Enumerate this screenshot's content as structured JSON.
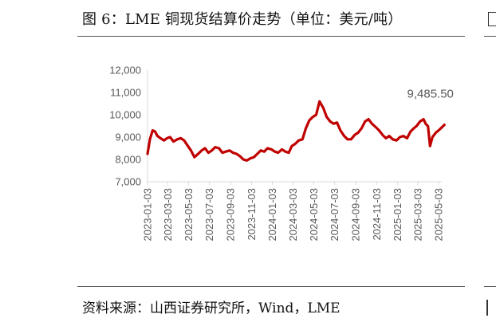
{
  "figure": {
    "title": "图 6：LME 铜现货结算价走势（单位：美元/吨）",
    "source": "资料来源：山西证券研究所，Wind，LME"
  },
  "chart_data": {
    "type": "line",
    "title": "",
    "xlabel": "",
    "ylabel": "",
    "ylim": [
      7000,
      12000
    ],
    "yticks": [
      "7,000",
      "8,000",
      "9,000",
      "10,000",
      "11,000",
      "12,000"
    ],
    "xticks": [
      "2023-01-03",
      "2023-03-03",
      "2023-05-03",
      "2023-07-03",
      "2023-09-03",
      "2023-11-03",
      "2024-01-03",
      "2024-03-03",
      "2024-05-03",
      "2024-07-03",
      "2024-09-03",
      "2024-11-03",
      "2025-01-03",
      "2025-03-03",
      "2025-05-03"
    ],
    "grid": false,
    "legend": "none",
    "line_color": "#c00000",
    "series": [
      {
        "x": [
          "2023-01-03",
          "2023-01-10",
          "2023-01-18",
          "2023-01-25",
          "2023-02-01",
          "2023-02-10",
          "2023-02-20",
          "2023-03-01",
          "2023-03-10",
          "2023-03-20",
          "2023-03-31",
          "2023-04-10",
          "2023-04-20",
          "2023-05-01",
          "2023-05-10",
          "2023-05-20",
          "2023-05-31",
          "2023-06-10",
          "2023-06-20",
          "2023-06-30",
          "2023-07-10",
          "2023-07-20",
          "2023-07-31",
          "2023-08-10",
          "2023-08-20",
          "2023-08-31",
          "2023-09-10",
          "2023-09-20",
          "2023-09-30",
          "2023-10-10",
          "2023-10-20",
          "2023-10-31",
          "2023-11-10",
          "2023-11-20",
          "2023-11-30",
          "2023-12-10",
          "2023-12-20",
          "2023-12-31",
          "2024-01-10",
          "2024-01-20",
          "2024-01-31",
          "2024-02-10",
          "2024-02-20",
          "2024-02-29",
          "2024-03-10",
          "2024-03-20",
          "2024-03-31",
          "2024-04-10",
          "2024-04-20",
          "2024-04-30",
          "2024-05-10",
          "2024-05-20",
          "2024-05-31",
          "2024-06-10",
          "2024-06-20",
          "2024-06-30",
          "2024-07-10",
          "2024-07-20",
          "2024-07-31",
          "2024-08-10",
          "2024-08-20",
          "2024-08-31",
          "2024-09-10",
          "2024-09-20",
          "2024-09-30",
          "2024-10-10",
          "2024-10-20",
          "2024-10-31",
          "2024-11-10",
          "2024-11-20",
          "2024-11-30",
          "2024-12-10",
          "2024-12-20",
          "2024-12-31",
          "2025-01-10",
          "2025-01-20",
          "2025-01-31",
          "2025-02-10",
          "2025-02-20",
          "2025-02-28",
          "2025-03-10",
          "2025-03-20",
          "2025-03-26",
          "2025-04-02",
          "2025-04-08",
          "2025-04-15",
          "2025-04-25",
          "2025-05-03",
          "2025-05-10",
          "2025-05-20"
        ],
        "values": [
          8250,
          8900,
          9300,
          9250,
          9050,
          8950,
          8850,
          8950,
          9000,
          8800,
          8900,
          8950,
          8850,
          8600,
          8400,
          8100,
          8250,
          8400,
          8500,
          8300,
          8400,
          8550,
          8500,
          8300,
          8350,
          8400,
          8300,
          8250,
          8150,
          8000,
          7950,
          8050,
          8100,
          8250,
          8400,
          8350,
          8500,
          8450,
          8350,
          8300,
          8450,
          8350,
          8300,
          8600,
          8700,
          8850,
          8900,
          9400,
          9750,
          9900,
          10000,
          10600,
          10300,
          9900,
          9700,
          9600,
          9650,
          9300,
          9050,
          8900,
          8900,
          9100,
          9200,
          9400,
          9700,
          9800,
          9600,
          9450,
          9300,
          9100,
          8950,
          9050,
          8900,
          8850,
          9000,
          9050,
          8950,
          9250,
          9400,
          9500,
          9700,
          9800,
          9600,
          9485.5,
          8600,
          9000,
          9200,
          9300,
          9400,
          9550
        ]
      }
    ],
    "annotations": [
      {
        "text": "9,485.50",
        "x": "2025-04-02",
        "y": 9485.5
      }
    ]
  }
}
